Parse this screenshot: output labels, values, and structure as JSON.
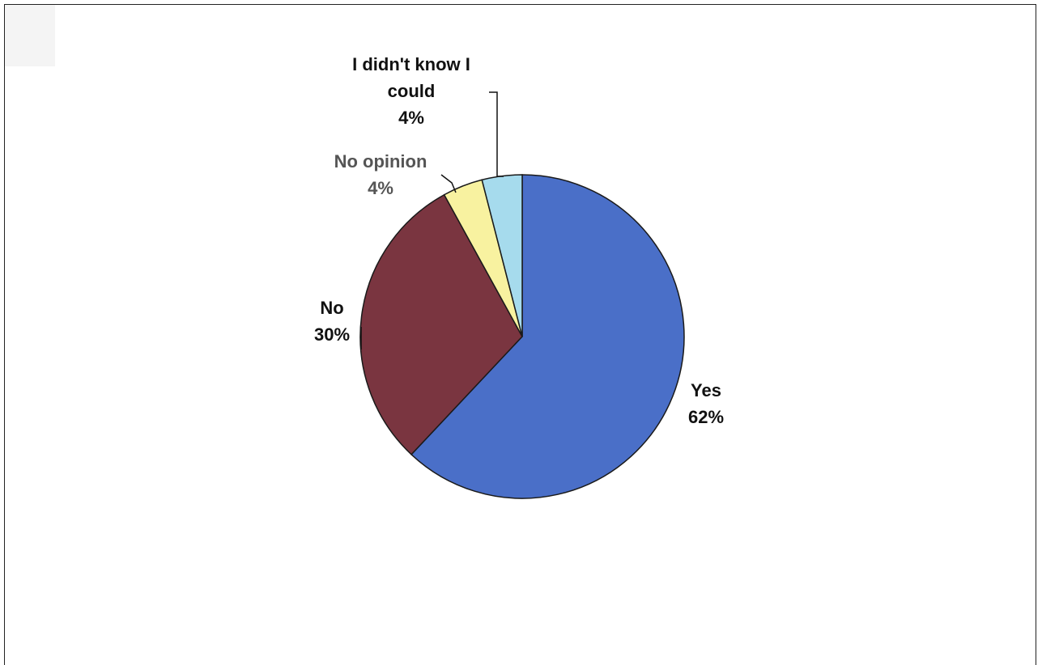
{
  "chart_data": {
    "type": "pie",
    "title": "",
    "start": "top",
    "direction": "clockwise",
    "slices": [
      {
        "label": "Yes",
        "value": 62,
        "percent_label": "62%",
        "color": "#4a6fc8",
        "label_color": "#111111"
      },
      {
        "label": "No",
        "value": 30,
        "percent_label": "30%",
        "color": "#7a3540",
        "label_color": "#111111"
      },
      {
        "label": "No opinion",
        "value": 4,
        "percent_label": "4%",
        "color": "#f8f2a0",
        "label_color": "#555555"
      },
      {
        "label": "I didn't know I could",
        "value": 4,
        "percent_label": "4%",
        "color": "#a6dbed",
        "label_color": "#111111"
      }
    ]
  }
}
